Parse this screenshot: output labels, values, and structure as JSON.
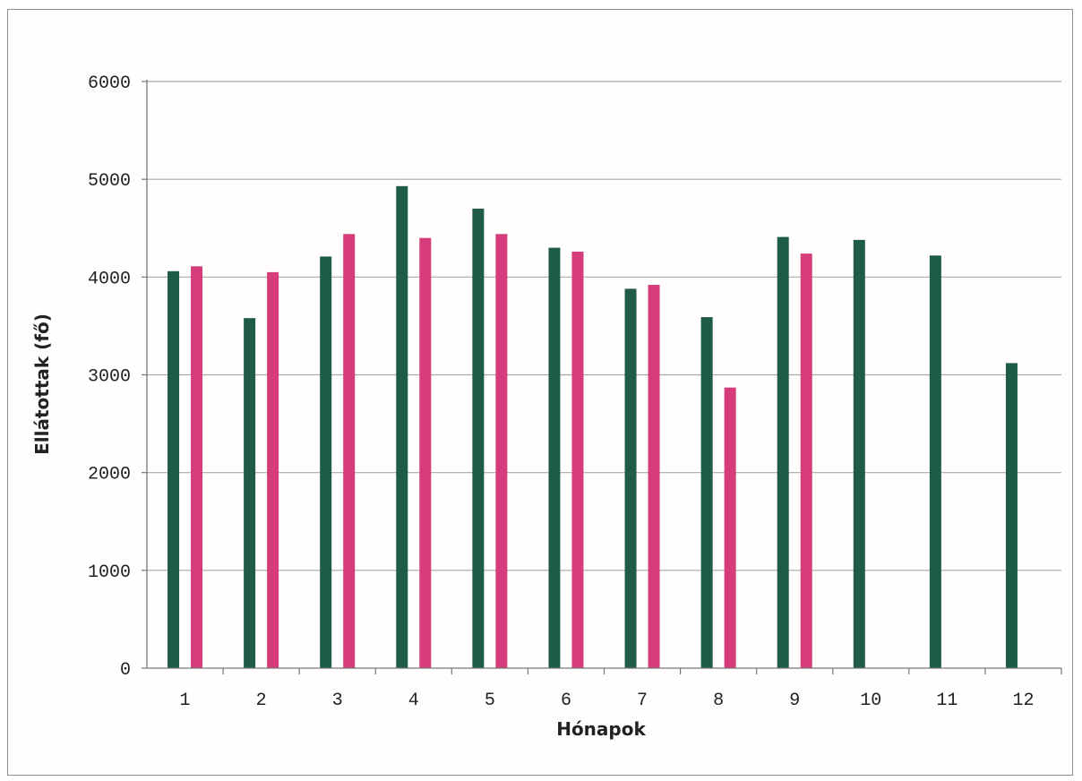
{
  "chart_data": {
    "type": "bar",
    "title": "",
    "xlabel": "Hónapok",
    "ylabel": "Ellátottak (fő)",
    "categories": [
      "1",
      "2",
      "3",
      "4",
      "5",
      "6",
      "7",
      "8",
      "9",
      "10",
      "11",
      "12"
    ],
    "yticks": [
      "0",
      "1000",
      "2000",
      "3000",
      "4000",
      "5000",
      "6000"
    ],
    "ylim": [
      0,
      6000
    ],
    "grid": true,
    "legend": "none",
    "series": [
      {
        "color": "#1f5c45",
        "values": [
          4060,
          3580,
          4210,
          4930,
          4700,
          4300,
          3880,
          3590,
          4410,
          4380,
          4220,
          3120
        ]
      },
      {
        "color": "#d63c7a",
        "values": [
          4110,
          4050,
          4440,
          4400,
          4440,
          4260,
          3920,
          2870,
          4240,
          null,
          null,
          null
        ]
      }
    ]
  }
}
